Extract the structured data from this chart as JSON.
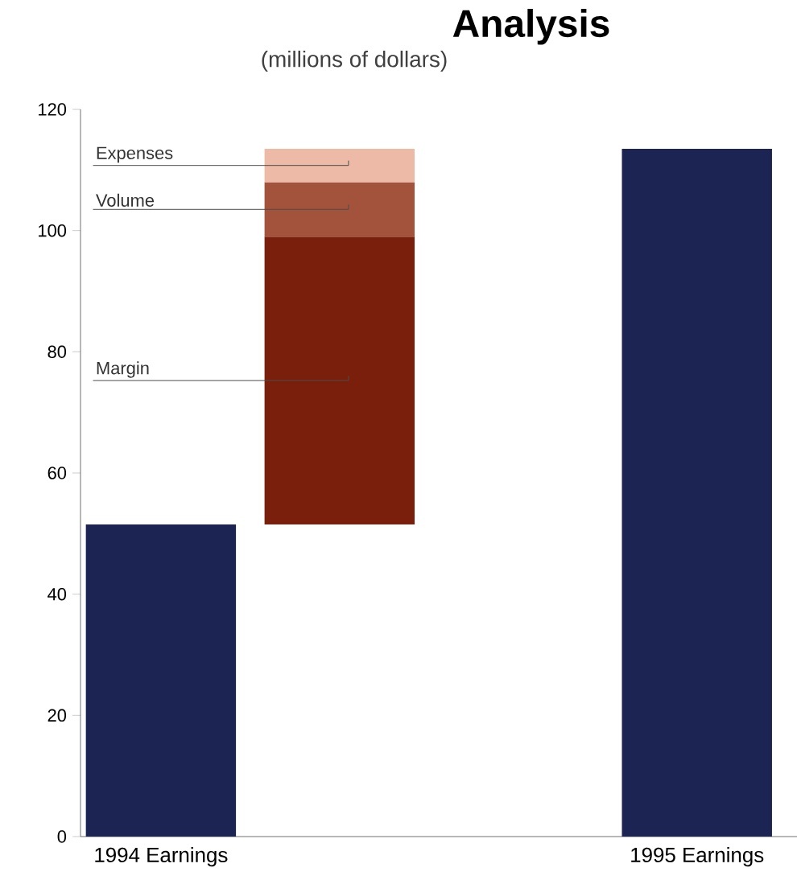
{
  "chart_data": {
    "type": "bar",
    "title": "Analysis",
    "subtitle": "(millions of dollars)",
    "categories": [
      "1994 Earnings",
      null,
      null,
      "1995 Earnings"
    ],
    "ylim": [
      0,
      120
    ],
    "yticks": [
      0,
      20,
      40,
      60,
      80,
      100,
      120
    ],
    "series": [
      {
        "color": "#1b2452",
        "values": [
          51.5,
          null,
          null,
          113.5
        ]
      },
      {
        "name": "Margin",
        "color": "#7a1f0c",
        "values": [
          null,
          47.5,
          null,
          null
        ],
        "base": [
          null,
          51.5,
          null,
          null
        ]
      },
      {
        "name": "Volume",
        "color": "#a3533c",
        "values": [
          null,
          9,
          null,
          null
        ],
        "base": [
          null,
          99,
          null,
          null
        ]
      },
      {
        "name": "Expenses",
        "color": "#ecbaa6",
        "values": [
          null,
          5.5,
          null,
          null
        ],
        "base": [
          null,
          108,
          null,
          null
        ]
      }
    ]
  }
}
